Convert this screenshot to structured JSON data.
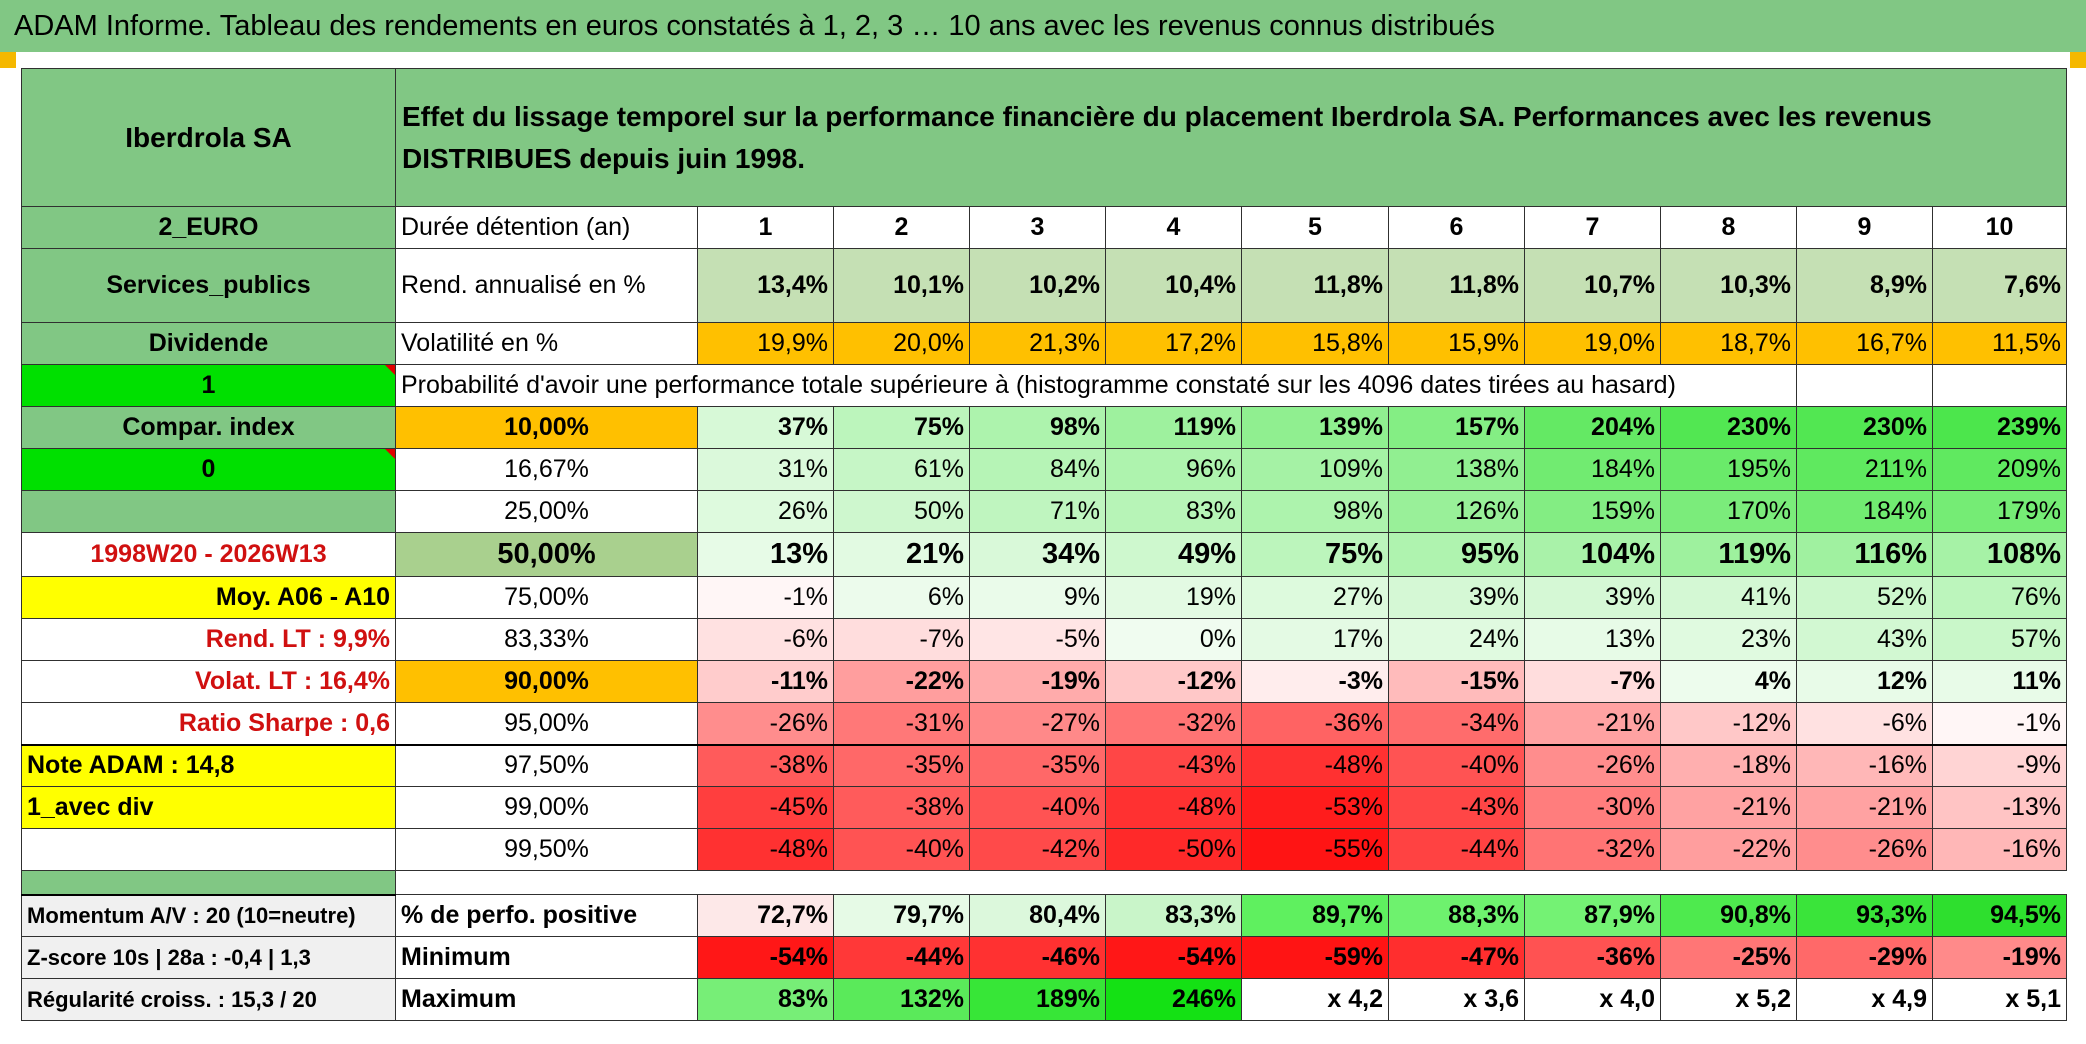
{
  "banner_title": "ADAM Informe. Tableau des rendements en euros constatés à 1, 2, 3 … 10 ans avec les revenus connus distribués",
  "header": {
    "company": "Iberdrola SA",
    "description": "Effet du lissage temporel sur la performance financière du placement Iberdrola SA. Performances avec les revenus DISTRIBUES depuis juin 1998."
  },
  "side": {
    "market": "2_EURO",
    "sector": "Services_publics",
    "income": "Dividende",
    "flag1": "1",
    "compar": "Compar. index",
    "flag0": "0",
    "period": "1998W20 - 2026W13",
    "moy": "Moy. A06 - A10",
    "rend_lt": "Rend. LT :   9,9%",
    "volat_lt": "Volat. LT :   16,4%",
    "sharpe": "Ratio Sharpe :   0,6",
    "note": "Note ADAM : 14,8",
    "avec_div": "1_avec div",
    "momentum": "Momentum A/V : 20 (10=neutre)",
    "zscore": "Z-score 10s | 28a : -0,4 | 1,3",
    "regularite": "Régularité croiss. : 15,3 / 20"
  },
  "labels": {
    "duree": "Durée détention (an)",
    "rend": "Rend. annualisé en %",
    "vol": "Volatilité en %",
    "prob": "Probabilité d'avoir une performance totale supérieure à (histogramme constaté sur les 4096 dates tirées au hasard)",
    "pos": "% de perfo. positive",
    "min": "Minimum",
    "max": "Maximum"
  },
  "years": [
    "1",
    "2",
    "3",
    "4",
    "5",
    "6",
    "7",
    "8",
    "9",
    "10"
  ],
  "rend": [
    "13,4%",
    "10,1%",
    "10,2%",
    "10,4%",
    "11,8%",
    "11,8%",
    "10,7%",
    "10,3%",
    "8,9%",
    "7,6%"
  ],
  "vol": [
    "19,9%",
    "20,0%",
    "21,3%",
    "17,2%",
    "15,8%",
    "15,9%",
    "19,0%",
    "18,7%",
    "16,7%",
    "11,5%"
  ],
  "probs": [
    {
      "p": "10,00%",
      "v": [
        "37%",
        "75%",
        "98%",
        "119%",
        "139%",
        "157%",
        "204%",
        "230%",
        "230%",
        "239%"
      ]
    },
    {
      "p": "16,67%",
      "v": [
        "31%",
        "61%",
        "84%",
        "96%",
        "109%",
        "138%",
        "184%",
        "195%",
        "211%",
        "209%"
      ]
    },
    {
      "p": "25,00%",
      "v": [
        "26%",
        "50%",
        "71%",
        "83%",
        "98%",
        "126%",
        "159%",
        "170%",
        "184%",
        "179%"
      ]
    },
    {
      "p": "50,00%",
      "v": [
        "13%",
        "21%",
        "34%",
        "49%",
        "75%",
        "95%",
        "104%",
        "119%",
        "116%",
        "108%"
      ]
    },
    {
      "p": "75,00%",
      "v": [
        "-1%",
        "6%",
        "9%",
        "19%",
        "27%",
        "39%",
        "39%",
        "41%",
        "52%",
        "76%"
      ]
    },
    {
      "p": "83,33%",
      "v": [
        "-6%",
        "-7%",
        "-5%",
        "0%",
        "17%",
        "24%",
        "13%",
        "23%",
        "43%",
        "57%"
      ]
    },
    {
      "p": "90,00%",
      "v": [
        "-11%",
        "-22%",
        "-19%",
        "-12%",
        "-3%",
        "-15%",
        "-7%",
        "4%",
        "12%",
        "11%"
      ]
    },
    {
      "p": "95,00%",
      "v": [
        "-26%",
        "-31%",
        "-27%",
        "-32%",
        "-36%",
        "-34%",
        "-21%",
        "-12%",
        "-6%",
        "-1%"
      ]
    },
    {
      "p": "97,50%",
      "v": [
        "-38%",
        "-35%",
        "-35%",
        "-43%",
        "-48%",
        "-40%",
        "-26%",
        "-18%",
        "-16%",
        "-9%"
      ]
    },
    {
      "p": "99,00%",
      "v": [
        "-45%",
        "-38%",
        "-40%",
        "-48%",
        "-53%",
        "-43%",
        "-30%",
        "-21%",
        "-21%",
        "-13%"
      ]
    },
    {
      "p": "99,50%",
      "v": [
        "-48%",
        "-40%",
        "-42%",
        "-50%",
        "-55%",
        "-44%",
        "-32%",
        "-22%",
        "-26%",
        "-16%"
      ]
    }
  ],
  "pos": [
    "72,7%",
    "79,7%",
    "80,4%",
    "83,3%",
    "89,7%",
    "88,3%",
    "87,9%",
    "90,8%",
    "93,3%",
    "94,5%"
  ],
  "min": [
    "-54%",
    "-44%",
    "-46%",
    "-54%",
    "-59%",
    "-47%",
    "-36%",
    "-25%",
    "-29%",
    "-19%"
  ],
  "max": [
    "83%",
    "132%",
    "189%",
    "246%",
    "x 4,2",
    "x 3,6",
    "x 4,0",
    "x 5,2",
    "x 4,9",
    "x 5,1"
  ]
}
